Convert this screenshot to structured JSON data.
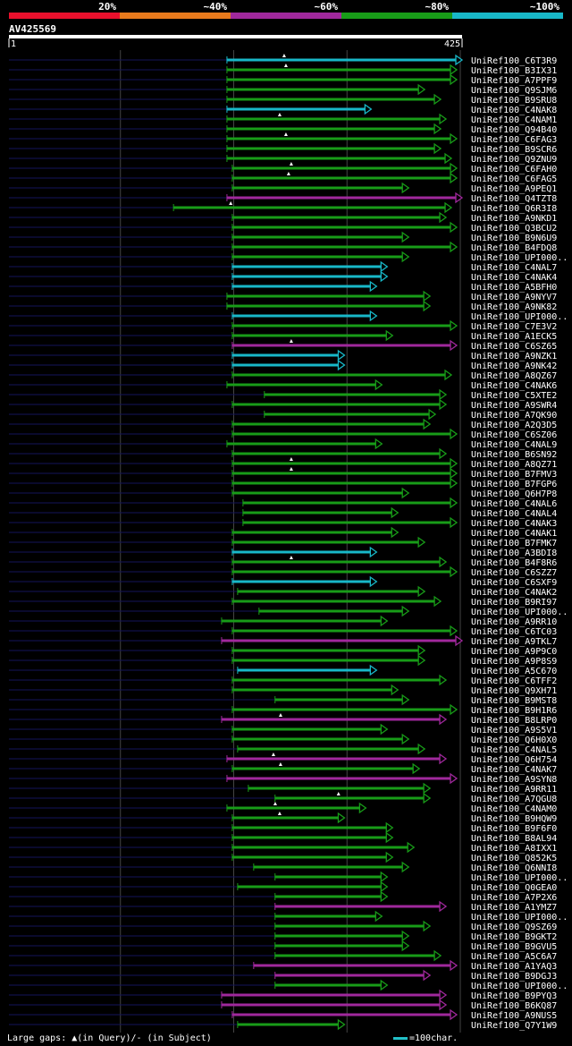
{
  "query": {
    "id": "AV425569",
    "length": 425,
    "start_label": "1",
    "end_label": "425"
  },
  "legend": {
    "labels": [
      "20%",
      "~40%",
      "~60%",
      "~80%",
      "~100%"
    ],
    "colors": [
      "#e8102c",
      "#e87a1c",
      "#a0289c",
      "#189c18",
      "#18b8c8"
    ]
  },
  "footer": {
    "gaps_note": "Large gaps: ▲(in Query)/- (in Subject)",
    "scale_note": "=100char."
  },
  "chart_data": {
    "type": "alignment-overview",
    "x_range": [
      1,
      425
    ],
    "identity_bins": [
      "20%",
      "~40%",
      "~60%",
      "~80%",
      "~100%"
    ],
    "hits": [
      {
        "name": "UniRef100_C6T3R9",
        "start": 205,
        "end": 425,
        "level": "~100%",
        "gaps": [
          64
        ]
      },
      {
        "name": "UniRef100_B3IX31",
        "start": 205,
        "end": 420,
        "level": "~80%",
        "gaps": [
          66
        ]
      },
      {
        "name": "UniRef100_A7PPF9",
        "start": 205,
        "end": 420,
        "level": "~80%",
        "gaps": []
      },
      {
        "name": "UniRef100_Q9SJM6",
        "start": 205,
        "end": 390,
        "level": "~80%",
        "gaps": []
      },
      {
        "name": "UniRef100_B9SRU8",
        "start": 205,
        "end": 405,
        "level": "~80%",
        "gaps": []
      },
      {
        "name": "UniRef100_C4NAK8",
        "start": 205,
        "end": 340,
        "level": "~100%",
        "gaps": []
      },
      {
        "name": "UniRef100_C4NAM1",
        "start": 205,
        "end": 410,
        "level": "~80%",
        "gaps": [
          59
        ]
      },
      {
        "name": "UniRef100_Q94B40",
        "start": 205,
        "end": 405,
        "level": "~80%",
        "gaps": []
      },
      {
        "name": "UniRef100_C6FAG3",
        "start": 205,
        "end": 420,
        "level": "~80%",
        "gaps": [
          66
        ]
      },
      {
        "name": "UniRef100_B9SCR6",
        "start": 205,
        "end": 405,
        "level": "~80%",
        "gaps": []
      },
      {
        "name": "UniRef100_Q9ZNU9",
        "start": 205,
        "end": 415,
        "level": "~80%",
        "gaps": []
      },
      {
        "name": "UniRef100_C6FAH0",
        "start": 210,
        "end": 420,
        "level": "~80%",
        "gaps": [
          66
        ]
      },
      {
        "name": "UniRef100_C6FAG5",
        "start": 210,
        "end": 420,
        "level": "~80%",
        "gaps": [
          63
        ]
      },
      {
        "name": "UniRef100_A9PEQ1",
        "start": 210,
        "end": 375,
        "level": "~80%",
        "gaps": []
      },
      {
        "name": "UniRef100_Q4TZT8",
        "start": 205,
        "end": 425,
        "level": "~60%",
        "gaps": []
      },
      {
        "name": "UniRef100_Q6R3I8",
        "start": 155,
        "end": 415,
        "level": "~80%",
        "gaps": [
          64
        ]
      },
      {
        "name": "UniRef100_A9NKD1",
        "start": 210,
        "end": 410,
        "level": "~80%",
        "gaps": []
      },
      {
        "name": "UniRef100_Q3BCU2",
        "start": 210,
        "end": 420,
        "level": "~80%",
        "gaps": []
      },
      {
        "name": "UniRef100_B9N6U9",
        "start": 210,
        "end": 375,
        "level": "~80%",
        "gaps": []
      },
      {
        "name": "UniRef100_B4FDQ8",
        "start": 210,
        "end": 420,
        "level": "~80%",
        "gaps": []
      },
      {
        "name": "UniRef100_UPI000..",
        "start": 210,
        "end": 375,
        "level": "~80%",
        "gaps": []
      },
      {
        "name": "UniRef100_C4NAL7",
        "start": 210,
        "end": 355,
        "level": "~100%",
        "gaps": []
      },
      {
        "name": "UniRef100_C4NAK4",
        "start": 210,
        "end": 355,
        "level": "~100%",
        "gaps": []
      },
      {
        "name": "UniRef100_A5BFH0",
        "start": 210,
        "end": 345,
        "level": "~100%",
        "gaps": []
      },
      {
        "name": "UniRef100_A9NYV7",
        "start": 205,
        "end": 395,
        "level": "~80%",
        "gaps": []
      },
      {
        "name": "UniRef100_A9NK82",
        "start": 205,
        "end": 395,
        "level": "~80%",
        "gaps": []
      },
      {
        "name": "UniRef100_UPI000..",
        "start": 210,
        "end": 345,
        "level": "~100%",
        "gaps": []
      },
      {
        "name": "UniRef100_C7E3V2",
        "start": 210,
        "end": 420,
        "level": "~80%",
        "gaps": []
      },
      {
        "name": "UniRef100_A1ECK5",
        "start": 210,
        "end": 360,
        "level": "~80%",
        "gaps": []
      },
      {
        "name": "UniRef100_C6SZ65",
        "start": 210,
        "end": 420,
        "level": "~60%",
        "gaps": [
          66
        ]
      },
      {
        "name": "UniRef100_A9NZK1",
        "start": 210,
        "end": 315,
        "level": "~100%",
        "gaps": []
      },
      {
        "name": "UniRef100_A9NK42",
        "start": 210,
        "end": 315,
        "level": "~100%",
        "gaps": []
      },
      {
        "name": "UniRef100_A8QZ67",
        "start": 210,
        "end": 415,
        "level": "~80%",
        "gaps": []
      },
      {
        "name": "UniRef100_C4NAK6",
        "start": 205,
        "end": 350,
        "level": "~80%",
        "gaps": []
      },
      {
        "name": "UniRef100_C5XTE2",
        "start": 240,
        "end": 410,
        "level": "~80%",
        "gaps": []
      },
      {
        "name": "UniRef100_A9SWR4",
        "start": 210,
        "end": 410,
        "level": "~80%",
        "gaps": []
      },
      {
        "name": "UniRef100_A7QK90",
        "start": 240,
        "end": 400,
        "level": "~80%",
        "gaps": []
      },
      {
        "name": "UniRef100_A2Q3D5",
        "start": 210,
        "end": 395,
        "level": "~80%",
        "gaps": []
      },
      {
        "name": "UniRef100_C6SZ06",
        "start": 210,
        "end": 420,
        "level": "~80%",
        "gaps": []
      },
      {
        "name": "UniRef100_C4NAL9",
        "start": 205,
        "end": 350,
        "level": "~80%",
        "gaps": []
      },
      {
        "name": "UniRef100_B6SN92",
        "start": 210,
        "end": 410,
        "level": "~80%",
        "gaps": []
      },
      {
        "name": "UniRef100_A8QZ71",
        "start": 210,
        "end": 420,
        "level": "~80%",
        "gaps": [
          66
        ]
      },
      {
        "name": "UniRef100_B7FMV3",
        "start": 210,
        "end": 420,
        "level": "~80%",
        "gaps": [
          66
        ]
      },
      {
        "name": "UniRef100_B7FGP6",
        "start": 210,
        "end": 420,
        "level": "~80%",
        "gaps": []
      },
      {
        "name": "UniRef100_Q6H7P8",
        "start": 210,
        "end": 375,
        "level": "~80%",
        "gaps": []
      },
      {
        "name": "UniRef100_C4NAL6",
        "start": 220,
        "end": 420,
        "level": "~80%",
        "gaps": []
      },
      {
        "name": "UniRef100_C4NAL4",
        "start": 220,
        "end": 365,
        "level": "~80%",
        "gaps": []
      },
      {
        "name": "UniRef100_C4NAK3",
        "start": 220,
        "end": 420,
        "level": "~80%",
        "gaps": []
      },
      {
        "name": "UniRef100_C4NAK1",
        "start": 210,
        "end": 365,
        "level": "~80%",
        "gaps": []
      },
      {
        "name": "UniRef100_B7FMK7",
        "start": 210,
        "end": 390,
        "level": "~80%",
        "gaps": []
      },
      {
        "name": "UniRef100_A3BDI8",
        "start": 210,
        "end": 345,
        "level": "~100%",
        "gaps": []
      },
      {
        "name": "UniRef100_B4F8R6",
        "start": 210,
        "end": 410,
        "level": "~80%",
        "gaps": [
          66
        ]
      },
      {
        "name": "UniRef100_C6SZZ7",
        "start": 210,
        "end": 420,
        "level": "~80%",
        "gaps": []
      },
      {
        "name": "UniRef100_C6SXF9",
        "start": 210,
        "end": 345,
        "level": "~100%",
        "gaps": []
      },
      {
        "name": "UniRef100_C4NAK2",
        "start": 215,
        "end": 390,
        "level": "~80%",
        "gaps": []
      },
      {
        "name": "UniRef100_B9RI97",
        "start": 210,
        "end": 405,
        "level": "~80%",
        "gaps": []
      },
      {
        "name": "UniRef100_UPI000..",
        "start": 235,
        "end": 375,
        "level": "~80%",
        "gaps": []
      },
      {
        "name": "UniRef100_A9RR10",
        "start": 200,
        "end": 355,
        "level": "~80%",
        "gaps": []
      },
      {
        "name": "UniRef100_C6TC03",
        "start": 210,
        "end": 420,
        "level": "~80%",
        "gaps": []
      },
      {
        "name": "UniRef100_A9TKL7",
        "start": 200,
        "end": 425,
        "level": "~60%",
        "gaps": []
      },
      {
        "name": "UniRef100_A9P9C0",
        "start": 210,
        "end": 390,
        "level": "~80%",
        "gaps": []
      },
      {
        "name": "UniRef100_A9P8S9",
        "start": 210,
        "end": 390,
        "level": "~80%",
        "gaps": []
      },
      {
        "name": "UniRef100_A5C670",
        "start": 215,
        "end": 345,
        "level": "~100%",
        "gaps": []
      },
      {
        "name": "UniRef100_C6TFF2",
        "start": 210,
        "end": 410,
        "level": "~80%",
        "gaps": []
      },
      {
        "name": "UniRef100_Q9XH71",
        "start": 210,
        "end": 365,
        "level": "~80%",
        "gaps": []
      },
      {
        "name": "UniRef100_B9MST8",
        "start": 250,
        "end": 375,
        "level": "~80%",
        "gaps": []
      },
      {
        "name": "UniRef100_B9H1R6",
        "start": 210,
        "end": 420,
        "level": "~80%",
        "gaps": []
      },
      {
        "name": "UniRef100_B8LRP0",
        "start": 200,
        "end": 410,
        "level": "~60%",
        "gaps": [
          66
        ]
      },
      {
        "name": "UniRef100_A9S5V1",
        "start": 210,
        "end": 355,
        "level": "~80%",
        "gaps": []
      },
      {
        "name": "UniRef100_Q6H0X0",
        "start": 210,
        "end": 375,
        "level": "~80%",
        "gaps": []
      },
      {
        "name": "UniRef100_C4NAL5",
        "start": 215,
        "end": 390,
        "level": "~80%",
        "gaps": []
      },
      {
        "name": "UniRef100_Q6H754",
        "start": 205,
        "end": 410,
        "level": "~60%",
        "gaps": [
          52
        ]
      },
      {
        "name": "UniRef100_C4NAK7",
        "start": 210,
        "end": 385,
        "level": "~80%",
        "gaps": [
          54
        ]
      },
      {
        "name": "UniRef100_A9SYN8",
        "start": 205,
        "end": 420,
        "level": "~60%",
        "gaps": []
      },
      {
        "name": "UniRef100_A9RR11",
        "start": 225,
        "end": 395,
        "level": "~80%",
        "gaps": []
      },
      {
        "name": "UniRef100_A7QGU8",
        "start": 250,
        "end": 395,
        "level": "~80%",
        "gaps": [
          71
        ]
      },
      {
        "name": "UniRef100_C4NAM0",
        "start": 205,
        "end": 335,
        "level": "~80%",
        "gaps": [
          54
        ]
      },
      {
        "name": "UniRef100_B9HQW9",
        "start": 210,
        "end": 315,
        "level": "~80%",
        "gaps": [
          53
        ]
      },
      {
        "name": "UniRef100_B9F6F0",
        "start": 210,
        "end": 360,
        "level": "~80%",
        "gaps": []
      },
      {
        "name": "UniRef100_B8AL94",
        "start": 210,
        "end": 360,
        "level": "~80%",
        "gaps": []
      },
      {
        "name": "UniRef100_A8IXX1",
        "start": 210,
        "end": 380,
        "level": "~80%",
        "gaps": []
      },
      {
        "name": "UniRef100_Q852K5",
        "start": 210,
        "end": 360,
        "level": "~80%",
        "gaps": []
      },
      {
        "name": "UniRef100_Q6NNI8",
        "start": 230,
        "end": 375,
        "level": "~80%",
        "gaps": []
      },
      {
        "name": "UniRef100_UPI000..",
        "start": 250,
        "end": 355,
        "level": "~80%",
        "gaps": []
      },
      {
        "name": "UniRef100_Q0GEA0",
        "start": 215,
        "end": 355,
        "level": "~80%",
        "gaps": []
      },
      {
        "name": "UniRef100_A7P2X6",
        "start": 250,
        "end": 355,
        "level": "~80%",
        "gaps": []
      },
      {
        "name": "UniRef100_A1YMZ7",
        "start": 250,
        "end": 410,
        "level": "~60%",
        "gaps": []
      },
      {
        "name": "UniRef100_UPI000..",
        "start": 250,
        "end": 350,
        "level": "~80%",
        "gaps": []
      },
      {
        "name": "UniRef100_Q9SZ69",
        "start": 250,
        "end": 395,
        "level": "~80%",
        "gaps": []
      },
      {
        "name": "UniRef100_B9GKT2",
        "start": 250,
        "end": 375,
        "level": "~80%",
        "gaps": []
      },
      {
        "name": "UniRef100_B9GVU5",
        "start": 250,
        "end": 375,
        "level": "~80%",
        "gaps": []
      },
      {
        "name": "UniRef100_A5C6A7",
        "start": 250,
        "end": 405,
        "level": "~80%",
        "gaps": []
      },
      {
        "name": "UniRef100_A1YAQ3",
        "start": 230,
        "end": 420,
        "level": "~60%",
        "gaps": []
      },
      {
        "name": "UniRef100_B9DGJ3",
        "start": 250,
        "end": 395,
        "level": "~60%",
        "gaps": []
      },
      {
        "name": "UniRef100_UPI000..",
        "start": 250,
        "end": 355,
        "level": "~80%",
        "gaps": []
      },
      {
        "name": "UniRef100_B9PYQ3",
        "start": 200,
        "end": 410,
        "level": "~60%",
        "gaps": []
      },
      {
        "name": "UniRef100_B6KQ87",
        "start": 200,
        "end": 410,
        "level": "~60%",
        "gaps": []
      },
      {
        "name": "UniRef100_A9NUS5",
        "start": 210,
        "end": 420,
        "level": "~60%",
        "gaps": []
      },
      {
        "name": "UniRef100_Q7Y1W9",
        "start": 215,
        "end": 315,
        "level": "~80%",
        "gaps": []
      }
    ]
  }
}
